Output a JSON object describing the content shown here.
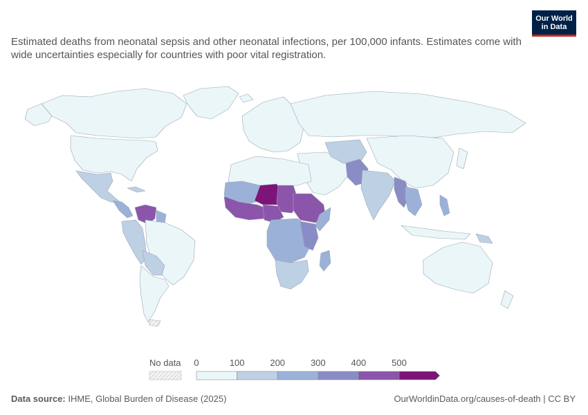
{
  "subtitle": "Estimated deaths from neonatal sepsis and other neonatal infections, per 100,000 infants. Estimates come with wide uncertainties especially for countries with poor vital registration.",
  "logo": {
    "line1": "Our World",
    "line2": "in Data",
    "bg_color": "#002147",
    "accent_color": "#ce261e"
  },
  "legend": {
    "no_data_label": "No data",
    "ticks": [
      "0",
      "100",
      "200",
      "300",
      "400",
      "500"
    ],
    "colors": [
      "#eaf6f8",
      "#bdd0e4",
      "#9bb1d8",
      "#8a8cc6",
      "#8b55ab",
      "#7d1479"
    ]
  },
  "footer": {
    "source_label": "Data source:",
    "source_text": "IHME, Global Burden of Disease (2025)",
    "url": "OurWorldinData.org/causes-of-death | CC BY"
  },
  "map_data": {
    "metric": "Deaths from neonatal sepsis and other neonatal infections per 100,000 infants",
    "regions": [
      {
        "name": "Canada",
        "bin": "0-100"
      },
      {
        "name": "United States",
        "bin": "0-100"
      },
      {
        "name": "Greenland",
        "bin": "0-100"
      },
      {
        "name": "Mexico",
        "bin": "100-200"
      },
      {
        "name": "Central America",
        "bin": "200-300"
      },
      {
        "name": "Venezuela",
        "bin": "400-500"
      },
      {
        "name": "Brazil",
        "bin": "0-100"
      },
      {
        "name": "Andean South America",
        "bin": "100-200"
      },
      {
        "name": "Paraguay / Bolivia",
        "bin": "100-200"
      },
      {
        "name": "Argentina / Chile",
        "bin": "0-100"
      },
      {
        "name": "Europe",
        "bin": "0-100"
      },
      {
        "name": "Russia",
        "bin": "0-100"
      },
      {
        "name": "North Africa",
        "bin": "0-100"
      },
      {
        "name": "Mauritania / Mali",
        "bin": "200-300"
      },
      {
        "name": "Niger",
        "bin": "500+"
      },
      {
        "name": "Chad",
        "bin": "400-500"
      },
      {
        "name": "Sudan / South Sudan",
        "bin": "400-500"
      },
      {
        "name": "Ethiopia",
        "bin": "400-500"
      },
      {
        "name": "Somalia",
        "bin": "200-300"
      },
      {
        "name": "West Africa coast",
        "bin": "400-500"
      },
      {
        "name": "Nigeria",
        "bin": "400-500"
      },
      {
        "name": "Central Africa",
        "bin": "200-300"
      },
      {
        "name": "East Africa",
        "bin": "300-400"
      },
      {
        "name": "Southern Africa",
        "bin": "100-200"
      },
      {
        "name": "Madagascar",
        "bin": "200-300"
      },
      {
        "name": "Middle East",
        "bin": "0-100"
      },
      {
        "name": "Central Asia",
        "bin": "100-200"
      },
      {
        "name": "Pakistan",
        "bin": "300-400"
      },
      {
        "name": "India",
        "bin": "100-200"
      },
      {
        "name": "Myanmar",
        "bin": "300-400"
      },
      {
        "name": "Southeast Asia",
        "bin": "200-300"
      },
      {
        "name": "China / Mongolia",
        "bin": "0-100"
      },
      {
        "name": "Philippines",
        "bin": "200-300"
      },
      {
        "name": "Indonesia",
        "bin": "0-100"
      },
      {
        "name": "Papua New Guinea",
        "bin": "100-200"
      },
      {
        "name": "Australia",
        "bin": "0-100"
      },
      {
        "name": "New Zealand",
        "bin": "0-100"
      }
    ]
  }
}
